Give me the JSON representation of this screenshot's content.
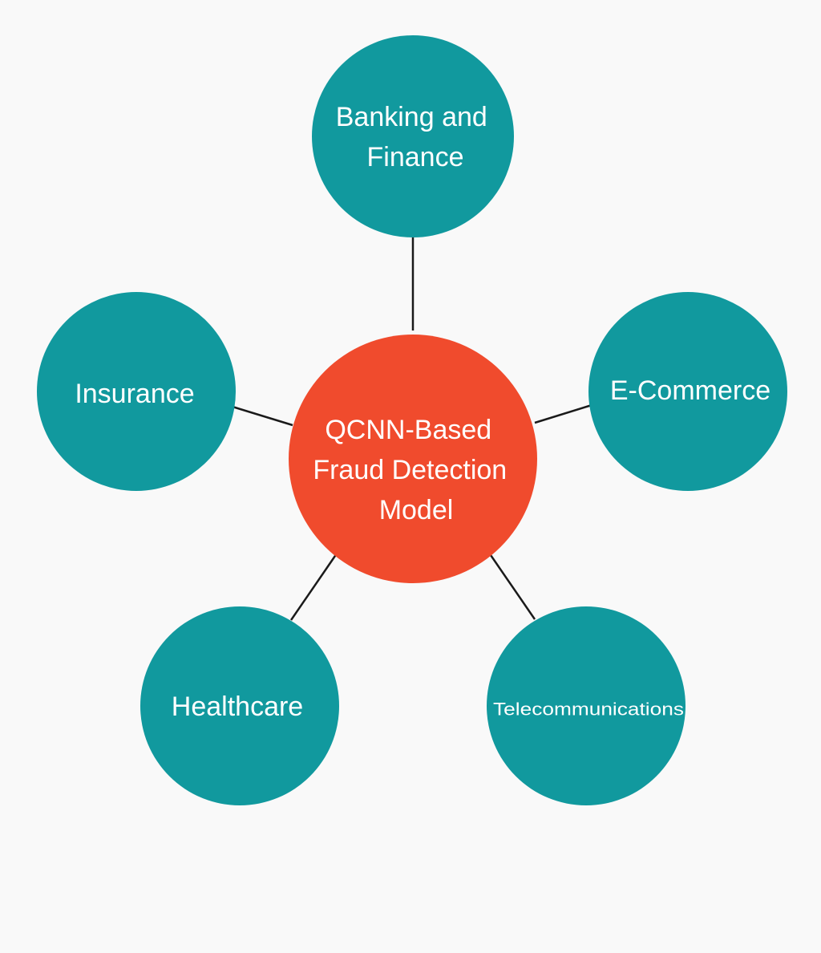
{
  "diagram": {
    "colors": {
      "background": "#f9f9f9",
      "center_fill": "#f04b2d",
      "satellite_fill": "#11999e",
      "text": "#ffffff",
      "connector": "#1a1a1a"
    },
    "center": {
      "lines": [
        "QCNN-Based",
        "Fraud Detection",
        "Model"
      ]
    },
    "satellites": [
      {
        "id": "banking",
        "lines": [
          "Banking and",
          "Finance"
        ]
      },
      {
        "id": "insurance",
        "lines": [
          "Insurance"
        ]
      },
      {
        "id": "ecommerce",
        "lines": [
          "E-Commerce"
        ]
      },
      {
        "id": "healthcare",
        "lines": [
          "Healthcare"
        ]
      },
      {
        "id": "telecom",
        "lines": [
          "Telecommunications"
        ]
      }
    ]
  }
}
